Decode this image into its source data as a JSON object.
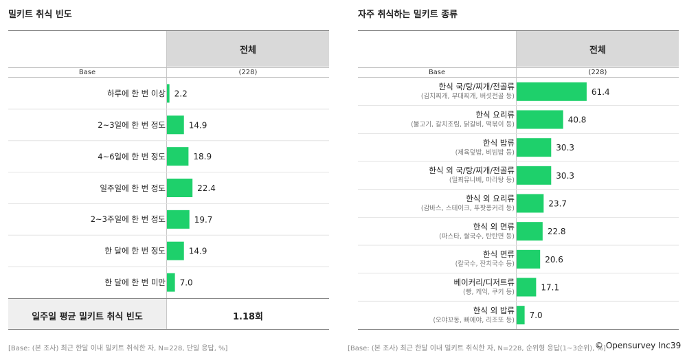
{
  "left": {
    "title": "밀키트 취식 빈도",
    "column_header": "전체",
    "base_label": "Base",
    "base_value": "(228)",
    "avg_label": "일주일 평균 밀키트 취식 빈도",
    "avg_value": "1.18회",
    "footnote": "[Base: (본 조사) 최근 한달 이내 밀키트 취식한 자, N=228, 단일 응답, %]",
    "chart_data": {
      "type": "bar",
      "orientation": "horizontal",
      "categories": [
        "하루에 한 번 이상",
        "2~3일에 한 번 정도",
        "4~6일에 한 번 정도",
        "일주일에 한 번 정도",
        "2~3주일에 한 번 정도",
        "한 달에 한 번 정도",
        "한 달에 한 번 미만"
      ],
      "values": [
        2.2,
        14.9,
        18.9,
        22.4,
        19.7,
        14.9,
        7.0
      ],
      "value_labels": [
        "2.2",
        "14.9",
        "18.9",
        "22.4",
        "19.7",
        "14.9",
        "7.0"
      ],
      "bar_color": "#1ed06b",
      "xlim": [
        0,
        100
      ]
    }
  },
  "right": {
    "title": "자주 취식하는 밀키트 종류",
    "column_header": "전체",
    "base_label": "Base",
    "base_value": "(228)",
    "footnote": "[Base: (본 조사) 최근 한달 이내 밀키트 취식한 자, N=228, 순위형 응답(1~3순위), %]",
    "chart_data": {
      "type": "bar",
      "orientation": "horizontal",
      "categories": [
        "한식 국/탕/찌개/전골류",
        "한식 요리류",
        "한식 밥류",
        "한식 외 국/탕/찌개/전골류",
        "한식 외 요리류",
        "한식 외 면류",
        "한식 면류",
        "베이커리/디저트류",
        "한식 외 밥류"
      ],
      "examples": [
        "(김치찌개, 부대찌개, 버섯전골 등)",
        "(불고기, 갈치조림, 닭갈비, 떡볶이 등)",
        "(제육덮밥, 비빔밥 등)",
        "(밀푀유나베, 마라탕 등)",
        "(감바스, 스테이크, 푸팟퐁커리 등)",
        "(파스타, 쌀국수, 탄탄면 등)",
        "(칼국수, 잔치국수 등)",
        "(빵, 케익, 쿠키 등)",
        "(오야꼬동, 빠에야, 리조또 등)"
      ],
      "values": [
        61.4,
        40.8,
        30.3,
        30.3,
        23.7,
        22.8,
        20.6,
        17.1,
        7.0
      ],
      "value_labels": [
        "61.4",
        "40.8",
        "30.3",
        "30.3",
        "23.7",
        "22.8",
        "20.6",
        "17.1",
        "7.0"
      ],
      "bar_color": "#1ed06b",
      "xlim": [
        0,
        100
      ]
    }
  },
  "copyright": "© Opensurvey Inc.",
  "page_number": "39"
}
